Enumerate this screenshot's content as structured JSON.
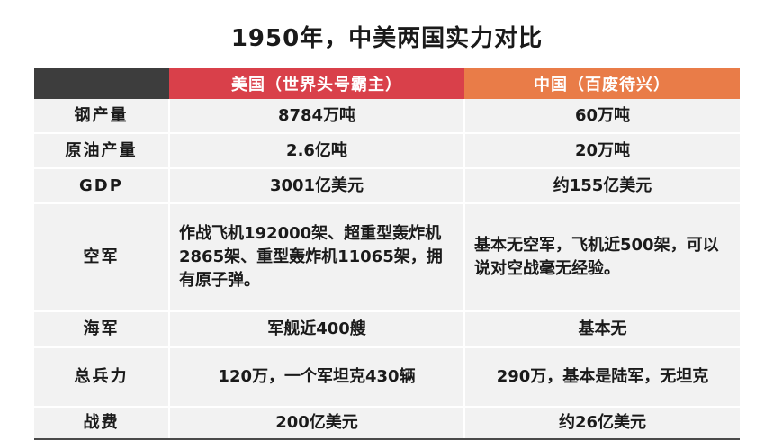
{
  "title": "1950年，中美两国实力对比",
  "table": {
    "headers": [
      "",
      "美国（世界头号霸主）",
      "中国（百废待兴）"
    ],
    "rows": [
      {
        "label": "钢产量",
        "us": "8784万吨",
        "cn": "60万吨"
      },
      {
        "label": "原油产量",
        "us": "2.6亿吨",
        "cn": "20万吨"
      },
      {
        "label": "GDP",
        "us": "3001亿美元",
        "cn": "约155亿美元"
      },
      {
        "label": "空军",
        "us": "作战飞机192000架、超重型轰炸机2865架、重型轰炸机11065架，拥有原子弹。",
        "cn": "基本无空军，飞机近500架，可以说对空战毫无经验。"
      },
      {
        "label": "海军",
        "us": "军舰近400艘",
        "cn": "基本无"
      },
      {
        "label": "总兵力",
        "us": "120万，一个军坦克430辆",
        "cn": "290万，基本是陆军，无坦克"
      },
      {
        "label": "战费",
        "us": "200亿美元",
        "cn": "约26亿美元"
      }
    ]
  },
  "colors": {
    "header_label_bg": "#3d3d3d",
    "header_us_bg": "#d9404a",
    "header_cn_bg": "#e97c48",
    "row_bg": "#f2f2f2"
  }
}
